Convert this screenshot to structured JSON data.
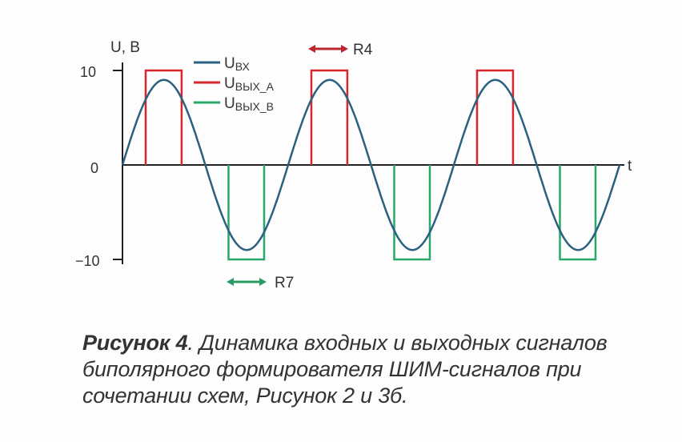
{
  "chart_data": {
    "type": "line",
    "ylabel": "U, В",
    "xlabel": "t",
    "ylim": [
      -10,
      10
    ],
    "yticks": [
      "10",
      "0",
      "−10"
    ],
    "grid": false,
    "legend_placement": "top-left",
    "periods": 3,
    "series": [
      {
        "name": "U",
        "subscript": "ВХ",
        "kind": "sine",
        "amplitude": 9,
        "color": "#2a6080"
      },
      {
        "name": "U",
        "subscript": "ВЫХ_А",
        "kind": "pulses",
        "level": 10,
        "phase_windows": [
          [
            0.14,
            0.357
          ]
        ],
        "color": "#d8262e"
      },
      {
        "name": "U",
        "subscript": "ВЫХ_В",
        "kind": "pulses",
        "level": -10,
        "phase_windows": [
          [
            0.64,
            0.855
          ]
        ],
        "color": "#2aa86a"
      }
    ],
    "annotations": [
      {
        "label": "R4",
        "color": "#b8262e"
      },
      {
        "label": "R7",
        "color": "#2a9a60"
      }
    ]
  },
  "caption": {
    "bold": "Рисунок 4",
    "text": ". Динамика входных и выходных сигналов биполярного формирователя ШИМ-сигналов при сочетании схем, Рисунок 2 и 3б."
  }
}
